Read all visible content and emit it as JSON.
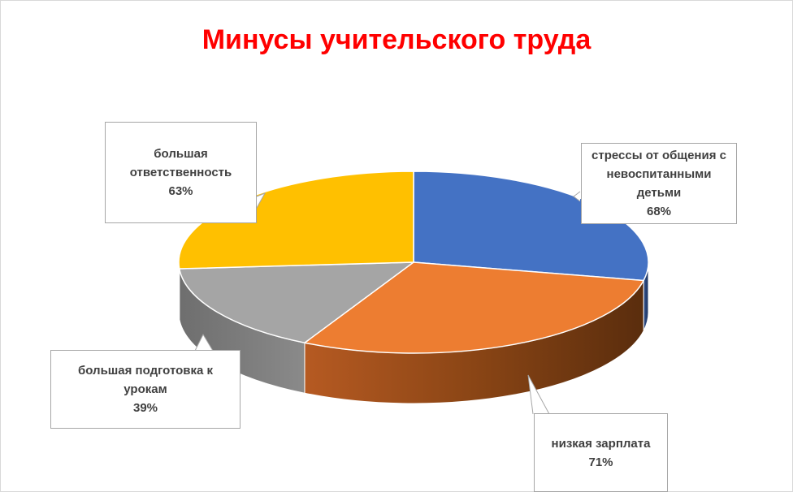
{
  "chart_data": {
    "type": "pie",
    "title": "Минусы учительского труда",
    "categories": [
      "стрессы от общения с невоспитанными детьми",
      "низкая зарплата",
      "большая подготовка к урокам",
      "большая ответственность"
    ],
    "values": [
      68,
      71,
      39,
      63
    ],
    "value_labels": [
      "68%",
      "71%",
      "39%",
      "63%"
    ],
    "colors": [
      "#4472c4",
      "#ed7d31",
      "#a5a5a5",
      "#ffc000"
    ],
    "legend": "none",
    "labels": [
      {
        "lines": [
          "стрессы от общения с",
          "невоспитанными",
          "детьми"
        ],
        "value": "68%"
      },
      {
        "lines": [
          "низкая зарплата"
        ],
        "value": "71%"
      },
      {
        "lines": [
          "большая подготовка  к",
          "урокам"
        ],
        "value": "39%"
      },
      {
        "lines": [
          "большая",
          "ответственность"
        ],
        "value": "63%"
      }
    ]
  }
}
